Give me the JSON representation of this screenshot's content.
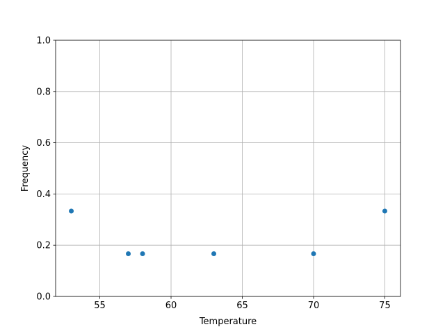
{
  "chart_data": {
    "type": "scatter",
    "title": "",
    "xlabel": "Temperature",
    "ylabel": "Frequency",
    "xlim": [
      51.9,
      76.1
    ],
    "ylim": [
      0,
      1
    ],
    "x": [
      53,
      57,
      58,
      63,
      70,
      75
    ],
    "y": [
      0.3333,
      0.1667,
      0.1667,
      0.1667,
      0.1667,
      0.3333
    ],
    "xticks": [
      55,
      60,
      65,
      70,
      75
    ],
    "xtick_labels": [
      "55",
      "60",
      "65",
      "70",
      "75"
    ],
    "yticks": [
      0,
      0.2,
      0.4,
      0.6,
      0.8,
      1.0
    ],
    "ytick_labels": [
      "0.0",
      "0.2",
      "0.4",
      "0.6",
      "0.8",
      "1.0"
    ],
    "grid": true,
    "marker_color": "#1f77b4"
  }
}
